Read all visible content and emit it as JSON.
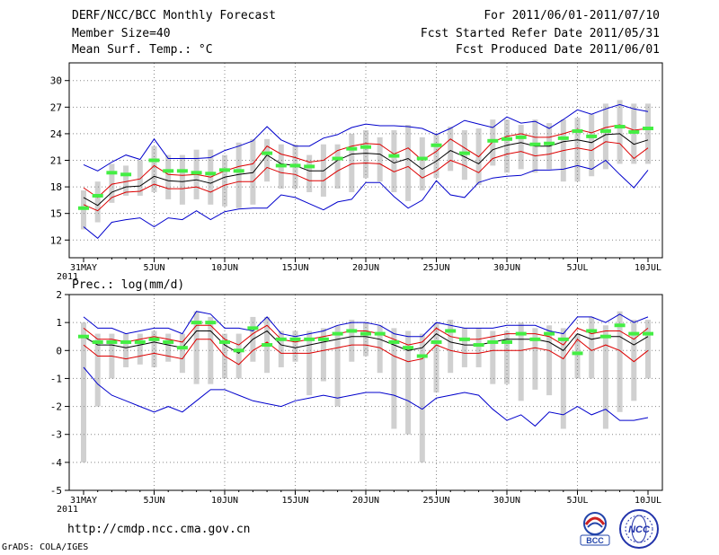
{
  "header": {
    "title": "DERF/NCC/BCC Monthly Forecast",
    "member_size": "Member Size=40",
    "variable": "Mean Surf. Temp.: °C",
    "period": "For 2011/06/01-2011/07/10",
    "fcst_started": "Fcst Started Refer Date 2011/05/31",
    "fcst_produced": "Fcst Produced Date 2011/06/01"
  },
  "footer": {
    "url": "http://cmdp.ncc.cma.gov.cn",
    "credit": "GrADS: COLA/IGES",
    "logo_left_text": "BCC",
    "logo_right_text": "NCC"
  },
  "colors": {
    "ensemble_mean": "#000000",
    "std_band": "#dd0000",
    "min_max": "#0000cc",
    "observed": "#44ee44",
    "range_bar": "#d0d0d0",
    "grid": "#888888"
  },
  "chart_data": [
    {
      "type": "line",
      "title": "Mean Surf. Temp.: °C",
      "xlabel": "",
      "ylabel": "",
      "ylim": [
        10,
        32
      ],
      "yticks": [
        12,
        15,
        18,
        21,
        24,
        27,
        30
      ],
      "x_tick_labels": [
        "31MAY\n2011",
        "5JUN",
        "10JUN",
        "15JUN",
        "20JUN",
        "25JUN",
        "30JUN",
        "5JUL",
        "10JUL"
      ],
      "x_tick_days": [
        0,
        5,
        10,
        15,
        20,
        25,
        30,
        35,
        40
      ],
      "series": [
        {
          "name": "max",
          "values": [
            20.5,
            19.8,
            20.8,
            21.6,
            21.1,
            23.4,
            21.2,
            21.2,
            21.2,
            21.3,
            22.1,
            22.6,
            23.2,
            24.8,
            23.3,
            22.6,
            22.6,
            23.5,
            23.9,
            24.7,
            25.1,
            24.9,
            24.9,
            24.8,
            24.6,
            23.9,
            24.6,
            25.5,
            25.1,
            24.7,
            25.9,
            25.2,
            25.4,
            24.6,
            25.6,
            26.7,
            26.2,
            26.8,
            27.3,
            26.8,
            26.5
          ]
        },
        {
          "name": "mean_plus_std",
          "values": [
            17.9,
            16.8,
            18.3,
            18.6,
            18.9,
            20.4,
            19.4,
            19.3,
            19.4,
            19.1,
            19.8,
            20.3,
            20.6,
            22.6,
            21.7,
            21.3,
            20.8,
            21.0,
            22.1,
            22.6,
            22.9,
            22.8,
            21.7,
            22.4,
            21.0,
            22.0,
            23.4,
            22.4,
            21.4,
            23.1,
            23.7,
            24.0,
            23.6,
            23.6,
            24.0,
            24.5,
            24.1,
            24.7,
            25.0,
            24.4,
            24.6
          ]
        },
        {
          "name": "mean",
          "values": [
            16.8,
            15.9,
            17.4,
            18.0,
            18.1,
            19.2,
            18.7,
            18.6,
            18.8,
            18.4,
            19.1,
            19.4,
            19.6,
            21.6,
            20.6,
            20.4,
            19.8,
            19.8,
            21.0,
            21.7,
            21.8,
            21.7,
            20.7,
            21.2,
            20.0,
            20.9,
            22.1,
            21.4,
            20.6,
            22.2,
            22.7,
            23.0,
            22.6,
            22.6,
            23.1,
            23.3,
            23.0,
            23.9,
            24.0,
            22.8,
            23.3
          ]
        },
        {
          "name": "mean_minus_std",
          "values": [
            16.0,
            15.3,
            16.8,
            17.4,
            17.5,
            18.3,
            17.8,
            17.8,
            18.0,
            17.4,
            18.2,
            18.6,
            18.6,
            20.2,
            19.6,
            19.4,
            18.7,
            18.7,
            19.8,
            20.6,
            20.7,
            20.6,
            19.7,
            20.3,
            19.0,
            19.8,
            21.0,
            20.4,
            19.6,
            21.2,
            21.7,
            22.0,
            21.5,
            21.7,
            22.1,
            22.4,
            22.1,
            23.1,
            22.9,
            21.2,
            22.4
          ]
        },
        {
          "name": "min",
          "values": [
            13.5,
            12.2,
            14.0,
            14.3,
            14.5,
            13.5,
            14.5,
            14.3,
            15.3,
            14.3,
            15.2,
            15.5,
            15.6,
            15.6,
            17.1,
            16.8,
            16.1,
            15.4,
            16.3,
            16.6,
            18.5,
            18.5,
            16.9,
            15.6,
            16.5,
            18.7,
            17.1,
            16.8,
            18.5,
            19.0,
            19.2,
            19.3,
            19.9,
            19.9,
            20.0,
            20.4,
            20.0,
            21.0,
            19.4,
            17.9,
            19.9
          ]
        },
        {
          "name": "observed",
          "values": [
            15.6,
            17.0,
            19.6,
            19.4,
            null,
            21.0,
            19.8,
            19.8,
            19.6,
            19.5,
            19.9,
            19.8,
            null,
            21.8,
            20.4,
            20.4,
            20.3,
            null,
            21.2,
            22.3,
            22.5,
            null,
            21.5,
            null,
            21.2,
            22.7,
            null,
            21.8,
            null,
            23.2,
            23.4,
            23.6,
            22.8,
            22.9,
            23.5,
            24.3,
            23.7,
            24.3,
            24.8,
            24.2,
            24.6
          ]
        },
        {
          "name": "range_low",
          "values": [
            13.2,
            14.0,
            16.2,
            17.0,
            17.0,
            17.4,
            16.6,
            16.0,
            16.6,
            16.0,
            15.8,
            15.6,
            16.0,
            18.6,
            17.8,
            17.8,
            17.4,
            16.9,
            17.8,
            17.4,
            19.0,
            18.6,
            17.4,
            16.4,
            17.6,
            19.0,
            19.8,
            18.8,
            18.2,
            20.4,
            19.6,
            20.0,
            19.6,
            20.0,
            18.6,
            18.6,
            19.2,
            20.0,
            20.6,
            20.6,
            20.6
          ]
        },
        {
          "name": "range_high",
          "values": [
            17.6,
            18.6,
            20.6,
            20.4,
            21.0,
            22.6,
            21.6,
            21.6,
            22.2,
            22.2,
            21.6,
            23.0,
            23.4,
            23.4,
            22.8,
            22.8,
            21.6,
            22.8,
            22.8,
            24.0,
            24.4,
            23.6,
            24.4,
            25.0,
            23.6,
            24.0,
            24.8,
            24.4,
            24.6,
            25.6,
            25.6,
            25.0,
            25.6,
            25.2,
            25.6,
            25.8,
            26.2,
            27.4,
            27.8,
            27.4,
            27.4
          ]
        }
      ]
    },
    {
      "type": "line",
      "title": "Prec.: log(mm/d)",
      "xlabel": "",
      "ylabel": "",
      "ylim": [
        -5,
        2
      ],
      "yticks": [
        -5,
        -4,
        -3,
        -2,
        -1,
        0,
        1,
        2
      ],
      "x_tick_labels": [
        "31MAY\n2011",
        "5JUN",
        "10JUN",
        "15JUN",
        "20JUN",
        "25JUN",
        "30JUN",
        "5JUL",
        "10JUL"
      ],
      "x_tick_days": [
        0,
        5,
        10,
        15,
        20,
        25,
        30,
        35,
        40
      ],
      "series": [
        {
          "name": "max",
          "values": [
            1.2,
            0.8,
            0.8,
            0.6,
            0.7,
            0.8,
            0.8,
            0.6,
            1.4,
            1.3,
            0.8,
            0.8,
            0.7,
            1.2,
            0.6,
            0.5,
            0.6,
            0.7,
            0.9,
            1.0,
            1.0,
            0.9,
            0.6,
            0.5,
            0.5,
            1.0,
            0.9,
            0.8,
            0.8,
            0.8,
            0.9,
            0.9,
            0.9,
            0.7,
            0.6,
            1.2,
            1.2,
            1.0,
            1.3,
            1.0,
            1.2
          ]
        },
        {
          "name": "mean_plus_std",
          "values": [
            0.8,
            0.4,
            0.4,
            0.3,
            0.4,
            0.5,
            0.4,
            0.3,
            0.9,
            0.9,
            0.4,
            0.2,
            0.6,
            0.9,
            0.4,
            0.3,
            0.4,
            0.5,
            0.6,
            0.7,
            0.7,
            0.6,
            0.4,
            0.2,
            0.3,
            0.8,
            0.5,
            0.4,
            0.4,
            0.5,
            0.6,
            0.6,
            0.6,
            0.5,
            0.2,
            0.8,
            0.6,
            0.7,
            0.7,
            0.4,
            0.8
          ]
        },
        {
          "name": "mean",
          "values": [
            0.5,
            0.2,
            0.2,
            0.1,
            0.2,
            0.3,
            0.2,
            0.1,
            0.7,
            0.7,
            0.2,
            -0.1,
            0.4,
            0.7,
            0.2,
            0.1,
            0.2,
            0.3,
            0.4,
            0.5,
            0.5,
            0.4,
            0.2,
            0.0,
            0.1,
            0.6,
            0.3,
            0.2,
            0.2,
            0.3,
            0.4,
            0.4,
            0.4,
            0.3,
            0.0,
            0.6,
            0.4,
            0.5,
            0.5,
            0.2,
            0.5
          ]
        },
        {
          "name": "mean_minus_std",
          "values": [
            0.2,
            -0.2,
            -0.2,
            -0.3,
            -0.2,
            -0.1,
            -0.2,
            -0.3,
            0.4,
            0.4,
            -0.2,
            -0.5,
            0.0,
            0.3,
            -0.1,
            -0.1,
            -0.1,
            0.0,
            0.1,
            0.2,
            0.2,
            0.1,
            -0.2,
            -0.4,
            -0.3,
            0.2,
            0.0,
            -0.1,
            -0.1,
            0.0,
            0.0,
            0.0,
            0.1,
            0.0,
            -0.3,
            0.4,
            0.0,
            0.2,
            0.0,
            -0.4,
            0.0
          ]
        },
        {
          "name": "min",
          "values": [
            -0.6,
            -1.2,
            -1.6,
            -1.8,
            -2.0,
            -2.2,
            -2.0,
            -2.2,
            -1.8,
            -1.4,
            -1.4,
            -1.6,
            -1.8,
            -1.9,
            -2.0,
            -1.8,
            -1.7,
            -1.6,
            -1.7,
            -1.6,
            -1.5,
            -1.5,
            -1.6,
            -1.8,
            -2.1,
            -1.7,
            -1.6,
            -1.5,
            -1.6,
            -2.1,
            -2.5,
            -2.3,
            -2.7,
            -2.2,
            -2.3,
            -2.0,
            -2.3,
            -2.1,
            -2.5,
            -2.5,
            -2.4
          ]
        },
        {
          "name": "observed",
          "values": [
            0.5,
            0.3,
            0.3,
            0.3,
            0.3,
            0.4,
            0.3,
            0.1,
            1.0,
            1.0,
            0.3,
            0.0,
            0.8,
            0.2,
            0.4,
            0.4,
            0.4,
            0.4,
            0.6,
            0.7,
            0.6,
            0.6,
            0.3,
            0.1,
            -0.2,
            0.3,
            0.7,
            0.4,
            0.2,
            0.3,
            0.3,
            0.6,
            0.4,
            0.6,
            0.4,
            -0.1,
            0.7,
            0.5,
            0.9,
            0.6,
            0.6
          ]
        },
        {
          "name": "range_low",
          "values": [
            -4.0,
            -2.0,
            -1.0,
            -0.6,
            -0.5,
            -0.6,
            -0.4,
            -0.8,
            -1.2,
            -1.2,
            -1.0,
            -1.0,
            -0.4,
            -0.8,
            -0.6,
            -0.4,
            -1.6,
            -1.1,
            -2.0,
            -0.4,
            -0.2,
            -0.8,
            -2.8,
            -3.0,
            -4.0,
            -1.5,
            -0.8,
            -0.6,
            -0.6,
            -1.2,
            -1.2,
            -1.8,
            -1.4,
            -1.6,
            -2.8,
            -1.0,
            -1.0,
            -2.8,
            -2.2,
            -1.8,
            -1.0
          ]
        },
        {
          "name": "range_high",
          "values": [
            1.0,
            0.6,
            0.6,
            0.6,
            0.6,
            0.7,
            0.6,
            0.6,
            1.4,
            1.2,
            0.6,
            0.6,
            1.2,
            1.2,
            0.7,
            0.7,
            0.7,
            0.8,
            0.9,
            1.1,
            1.0,
            0.9,
            0.8,
            0.7,
            0.6,
            1.0,
            1.1,
            0.8,
            0.8,
            0.7,
            0.7,
            1.0,
            0.8,
            0.9,
            0.8,
            0.6,
            1.2,
            0.9,
            1.4,
            1.1,
            1.1
          ]
        }
      ]
    }
  ]
}
